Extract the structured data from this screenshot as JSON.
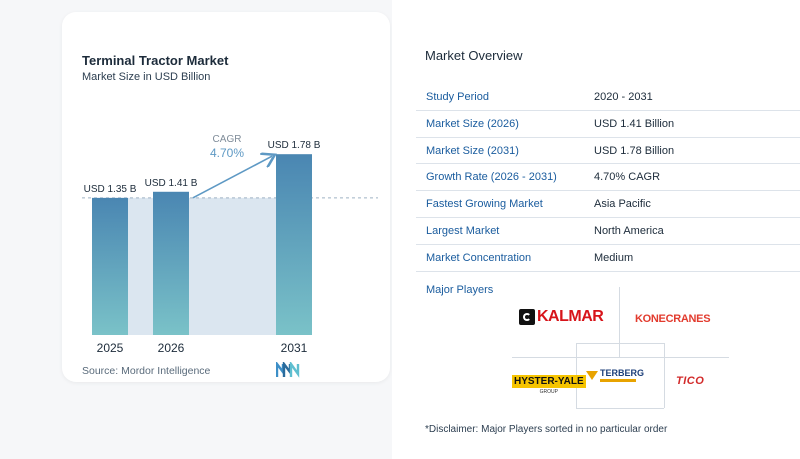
{
  "chart_data": {
    "type": "bar",
    "title": "Terminal Tractor Market",
    "subtitle": "Market Size in USD Billion",
    "categories": [
      "2025",
      "2026",
      "2031"
    ],
    "values": [
      1.35,
      1.41,
      1.78
    ],
    "data_labels": [
      "USD 1.35 B",
      "USD 1.41 B",
      "USD 1.78 B"
    ],
    "annotation": {
      "label": "CAGR",
      "value": "4.70%"
    },
    "ylim": [
      0,
      1.9
    ],
    "grid": false,
    "source": "Source:  Mordor Intelligence",
    "colors": {
      "bar_top": "#4a86b2",
      "bar_bottom": "#7ac2c8",
      "band": "#dbe6f0",
      "arrow": "#5e99c4",
      "cagr": "#7f8c99"
    }
  },
  "overview": {
    "title": "Market Overview",
    "rows": [
      {
        "key": "Study Period",
        "value": "2020 - 2031"
      },
      {
        "key": "Market Size (2026)",
        "value": "USD 1.41 Billion"
      },
      {
        "key": "Market Size (2031)",
        "value": "USD 1.78 Billion"
      },
      {
        "key": "Growth Rate (2026 - 2031)",
        "value": "4.70% CAGR"
      },
      {
        "key": "Fastest Growing Market",
        "value": "Asia Pacific"
      },
      {
        "key": "Largest Market",
        "value": "North America"
      },
      {
        "key": "Market Concentration",
        "value": "Medium"
      }
    ],
    "players_title": "Major Players",
    "players": [
      "KALMAR",
      "KONECRANES",
      "HYSTER-YALE",
      "TERBERG",
      "TICO"
    ],
    "disclaimer": "*Disclaimer: Major Players sorted in no particular order"
  }
}
